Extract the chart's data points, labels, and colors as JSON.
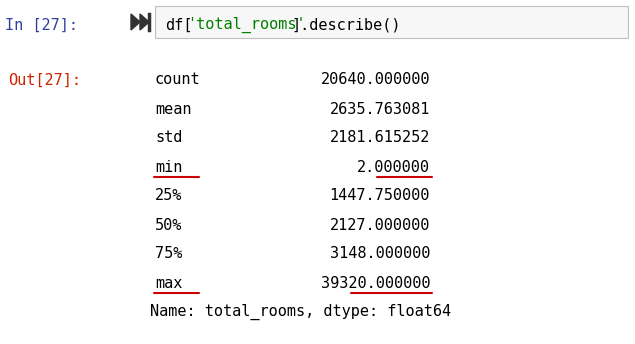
{
  "bg_color": "#ffffff",
  "input_label": "In [27]:",
  "input_color": "#303f9f",
  "output_label": "Out[27]:",
  "output_color": "#cc2200",
  "code_color": "#000000",
  "string_color": "#008000",
  "rows": [
    {
      "label": "count",
      "value": "20640.000000",
      "underline": false
    },
    {
      "label": "mean",
      "value": "2635.763081",
      "underline": false
    },
    {
      "label": "std",
      "value": "2181.615252",
      "underline": false
    },
    {
      "label": "min",
      "value": "2.000000",
      "underline": true
    },
    {
      "label": "25%",
      "value": "1447.750000",
      "underline": false
    },
    {
      "label": "50%",
      "value": "2127.000000",
      "underline": false
    },
    {
      "label": "75%",
      "value": "3148.000000",
      "underline": false
    },
    {
      "label": "max",
      "value": "39320.000000",
      "underline": true
    }
  ],
  "footer": "Name: total_rooms, dtype: float64",
  "underline_color": "#cc0000",
  "font_size": 11,
  "mono_font": "DejaVu Sans Mono"
}
